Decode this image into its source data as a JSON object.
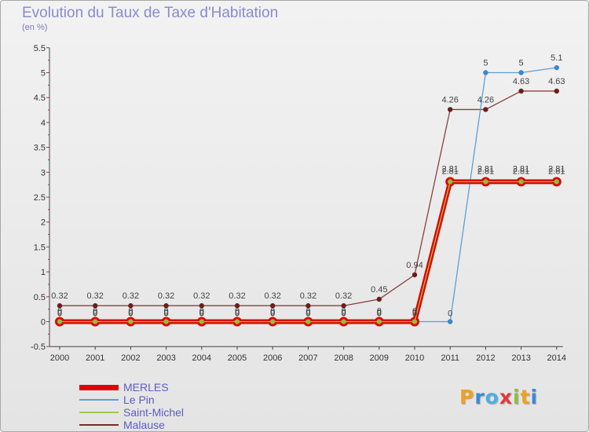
{
  "header": {
    "title": "Evolution du Taux de Taxe d'Habitation",
    "subtitle": "(en %)"
  },
  "logo": {
    "text": "Proxiti"
  },
  "chart_data": {
    "type": "line",
    "title": "Evolution du Taux de Taxe d'Habitation",
    "subtitle": "(en %)",
    "xlabel": "",
    "ylabel": "",
    "x": [
      "2000",
      "2001",
      "2002",
      "2003",
      "2004",
      "2005",
      "2006",
      "2007",
      "2008",
      "2009",
      "2010",
      "2011",
      "2012",
      "2013",
      "2014"
    ],
    "ylim": [
      -0.5,
      5.5
    ],
    "yticks": [
      -0.5,
      0,
      0.5,
      1,
      1.5,
      2,
      2.5,
      3,
      3.5,
      4,
      4.5,
      5,
      5.5
    ],
    "ytick_labels": [
      "-0.5",
      "0",
      "0.5",
      "1",
      "1.5",
      "2",
      "2.5",
      "3",
      "3.5",
      "4",
      "4.5",
      "5",
      "5.5"
    ],
    "grid": false,
    "legend_position": "bottom-left",
    "series": [
      {
        "name": "MERLES",
        "color": "#e00000",
        "values": [
          0,
          0,
          0,
          0,
          0,
          0,
          0,
          0,
          0,
          0,
          0,
          2.81,
          2.81,
          2.81,
          2.81
        ],
        "labels": [
          "0",
          "0",
          "0",
          "0",
          "0",
          "0",
          "0",
          "0",
          "0",
          "0",
          "0",
          "2.81",
          "2.81",
          "2.81",
          "2.81"
        ]
      },
      {
        "name": "Le Pin",
        "color": "#5aa0d8",
        "values": [
          0,
          0,
          0,
          0,
          0,
          0,
          0,
          0,
          0,
          0,
          0,
          0,
          5,
          5,
          5.1
        ],
        "labels": [
          "0",
          "0",
          "0",
          "0",
          "0",
          "0",
          "0",
          "0",
          "0",
          "0",
          "0",
          "0",
          "5",
          "5",
          "5.1"
        ]
      },
      {
        "name": "Saint-Michel",
        "color": "#9ccc4a",
        "values": [
          0,
          0,
          0,
          0,
          0,
          0,
          0,
          0,
          0,
          0,
          0,
          2.81,
          2.81,
          2.81,
          2.81
        ],
        "labels": [
          "0",
          "0",
          "0",
          "0",
          "0",
          "0",
          "0",
          "0",
          "0",
          "0",
          "0",
          "2.81",
          "2.81",
          "2.81",
          "2.81"
        ]
      },
      {
        "name": "Malause",
        "color": "#7a2a2a",
        "values": [
          0.32,
          0.32,
          0.32,
          0.32,
          0.32,
          0.32,
          0.32,
          0.32,
          0.32,
          0.45,
          0.94,
          4.26,
          4.26,
          4.63,
          4.63
        ],
        "labels": [
          "0.32",
          "0.32",
          "0.32",
          "0.32",
          "0.32",
          "0.32",
          "0.32",
          "0.32",
          "0.32",
          "0.45",
          "0.94",
          "4.26",
          "4.26",
          "4.63",
          "4.63"
        ]
      }
    ]
  }
}
